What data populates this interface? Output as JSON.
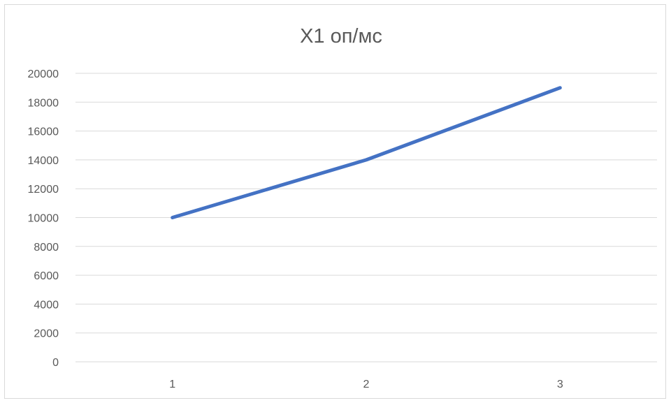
{
  "chart_data": {
    "type": "line",
    "title": "X1 оп/мс",
    "xlabel": "",
    "ylabel": "",
    "categories": [
      "1",
      "2",
      "3"
    ],
    "series": [
      {
        "values": [
          10000,
          14000,
          19000
        ]
      }
    ],
    "ylim": [
      0,
      20000
    ],
    "yticks": [
      0,
      2000,
      4000,
      6000,
      8000,
      10000,
      12000,
      14000,
      16000,
      18000,
      20000
    ],
    "grid": true,
    "legend": "none",
    "colors": {
      "series": "#4472c4",
      "grid": "#d9d9d9",
      "text": "#595959",
      "border": "#d9d9d9"
    }
  }
}
